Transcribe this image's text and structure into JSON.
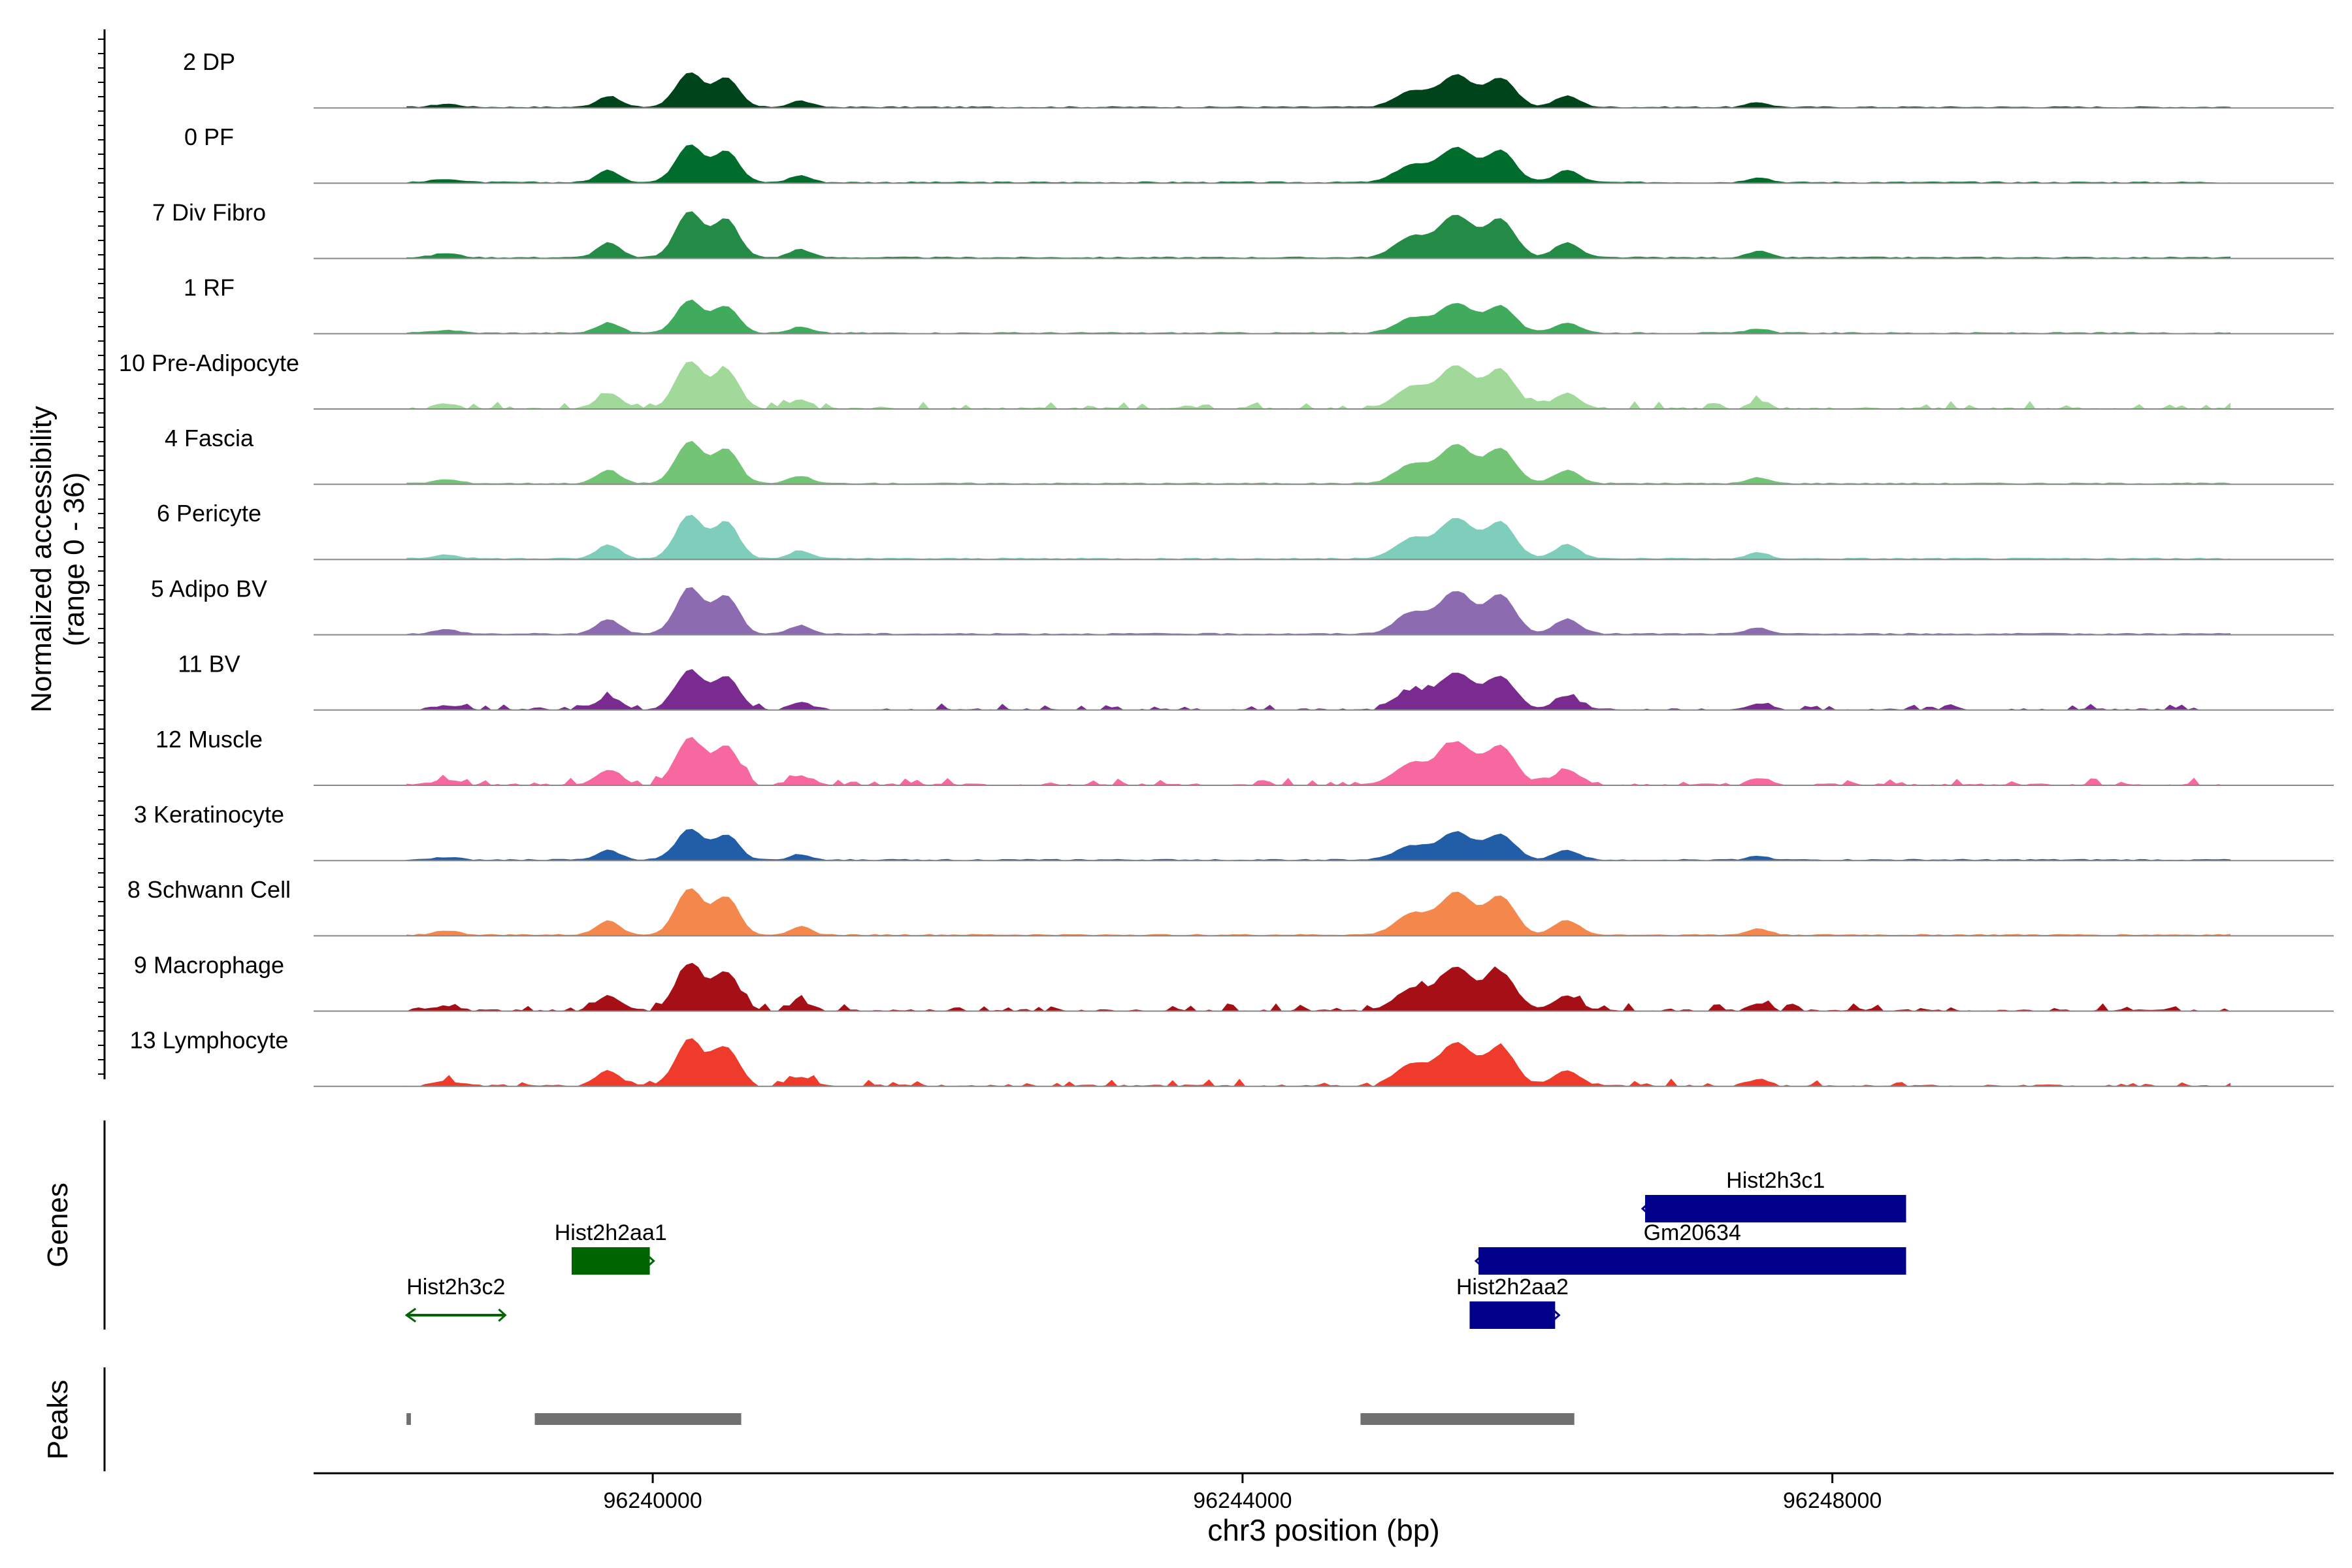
{
  "chart_data": {
    "type": "area",
    "ylabel_line1": "Normalized accessibility",
    "ylabel_line2": "(range 0 - 36)",
    "ylim": [
      0,
      36
    ],
    "xlabel": "chr3 position (bp)",
    "xlim": [
      96237700,
      96251400
    ],
    "x_ticks": [
      96240000,
      96244000,
      96248000
    ],
    "x_tick_labels": [
      "96240000",
      "96244000",
      "96248000"
    ],
    "genes_label": "Genes",
    "peaks_label": "Peaks",
    "series": [
      {
        "name": "2 DP",
        "color": "#00441b",
        "scale": 0.75,
        "profile": "standard"
      },
      {
        "name": "0 PF",
        "color": "#006d2c",
        "scale": 0.82,
        "profile": "standard"
      },
      {
        "name": "7 Div Fibro",
        "color": "#238b45",
        "scale": 1.0,
        "profile": "standard"
      },
      {
        "name": "1 RF",
        "color": "#41ab5d",
        "scale": 0.7,
        "profile": "standard"
      },
      {
        "name": "10 Pre-Adipocyte",
        "color": "#a1d99b",
        "scale": 1.0,
        "profile": "broad"
      },
      {
        "name": "4 Fascia",
        "color": "#74c476",
        "scale": 0.9,
        "profile": "standard"
      },
      {
        "name": "6 Pericyte",
        "color": "#7fcdbb",
        "scale": 0.95,
        "profile": "standard"
      },
      {
        "name": "5 Adipo BV",
        "color": "#8c6bb1",
        "scale": 1.0,
        "profile": "standard"
      },
      {
        "name": "11 BV",
        "color": "#7a2b8f",
        "scale": 0.85,
        "profile": "broad"
      },
      {
        "name": "12 Muscle",
        "color": "#f768a1",
        "scale": 1.0,
        "profile": "broad"
      },
      {
        "name": "3 Keratinocyte",
        "color": "#225ea8",
        "scale": 0.65,
        "profile": "standard"
      },
      {
        "name": "8 Schwann Cell",
        "color": "#f4874b",
        "scale": 1.0,
        "profile": "standard"
      },
      {
        "name": "9 Macrophage",
        "color": "#a50f15",
        "scale": 1.0,
        "profile": "broad"
      },
      {
        "name": "13 Lymphocyte",
        "color": "#ef3b2c",
        "scale": 1.0,
        "profile": "broad"
      }
    ],
    "peak_centers": [
      96239700,
      96240400,
      96245400,
      96246200,
      96247800
    ],
    "genes": [
      {
        "name": "Hist2h3c1",
        "start": 96246730,
        "end": 96248500,
        "strand": "-",
        "row": 0,
        "color": "#00008b",
        "type": "box"
      },
      {
        "name": "Gm20634",
        "start": 96245600,
        "end": 96248500,
        "strand": "-",
        "row": 1,
        "color": "#00008b",
        "type": "box"
      },
      {
        "name": "Hist2h2aa1",
        "start": 96239450,
        "end": 96239980,
        "strand": "+",
        "row": 1,
        "color": "#006400",
        "type": "box"
      },
      {
        "name": "Hist2h2aa2",
        "start": 96245540,
        "end": 96246120,
        "strand": "+",
        "row": 2,
        "color": "#00008b",
        "type": "box"
      },
      {
        "name": "Hist2h3c2",
        "start": 96238330,
        "end": 96239000,
        "strand": "-",
        "row": 2,
        "color": "#006400",
        "type": "line"
      }
    ],
    "peaks": [
      {
        "start": 96238330,
        "end": 96238360
      },
      {
        "start": 96239200,
        "end": 96240600
      },
      {
        "start": 96244800,
        "end": 96246250
      }
    ]
  }
}
